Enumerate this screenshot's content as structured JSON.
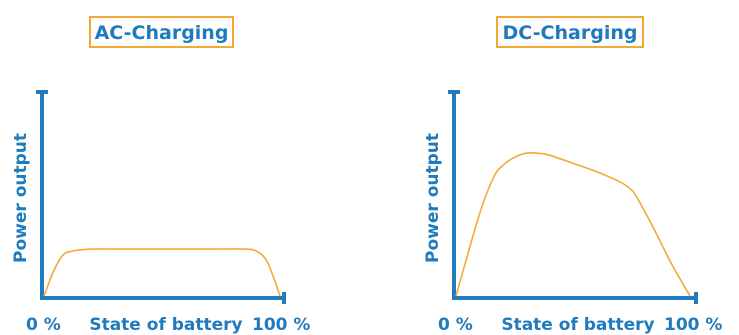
{
  "colors": {
    "axis": "#1f7bbd",
    "curve": "#f3a938",
    "title_border": "#f3a938",
    "text": "#1f7bbd"
  },
  "chart_data": [
    {
      "type": "line",
      "title": "AC-Charging",
      "xlabel": "State of battery",
      "ylabel": "Power output",
      "x_ticks": [
        "0 %",
        "100 %"
      ],
      "xlim": [
        0,
        100
      ],
      "ylim": [
        0,
        100
      ],
      "grid": false,
      "series": [
        {
          "x": [
            0,
            4,
            8,
            12,
            20,
            30,
            50,
            70,
            85,
            90,
            94,
            97,
            100
          ],
          "y": [
            0,
            12,
            20,
            22,
            23,
            23,
            23,
            23,
            23,
            22,
            18,
            10,
            0
          ]
        }
      ]
    },
    {
      "type": "line",
      "title": "DC-Charging",
      "xlabel": "State of battery",
      "ylabel": "Power output",
      "x_ticks": [
        "0 %",
        "100 %"
      ],
      "xlim": [
        0,
        100
      ],
      "ylim": [
        0,
        100
      ],
      "grid": false,
      "series": [
        {
          "x": [
            0,
            10,
            16,
            20,
            25,
            30,
            35,
            40,
            50,
            60,
            70,
            75,
            78,
            85,
            92,
            100
          ],
          "y": [
            0,
            40,
            58,
            64,
            68,
            70,
            70,
            69,
            65,
            61,
            56,
            52,
            47,
            32,
            16,
            0
          ]
        }
      ]
    }
  ]
}
